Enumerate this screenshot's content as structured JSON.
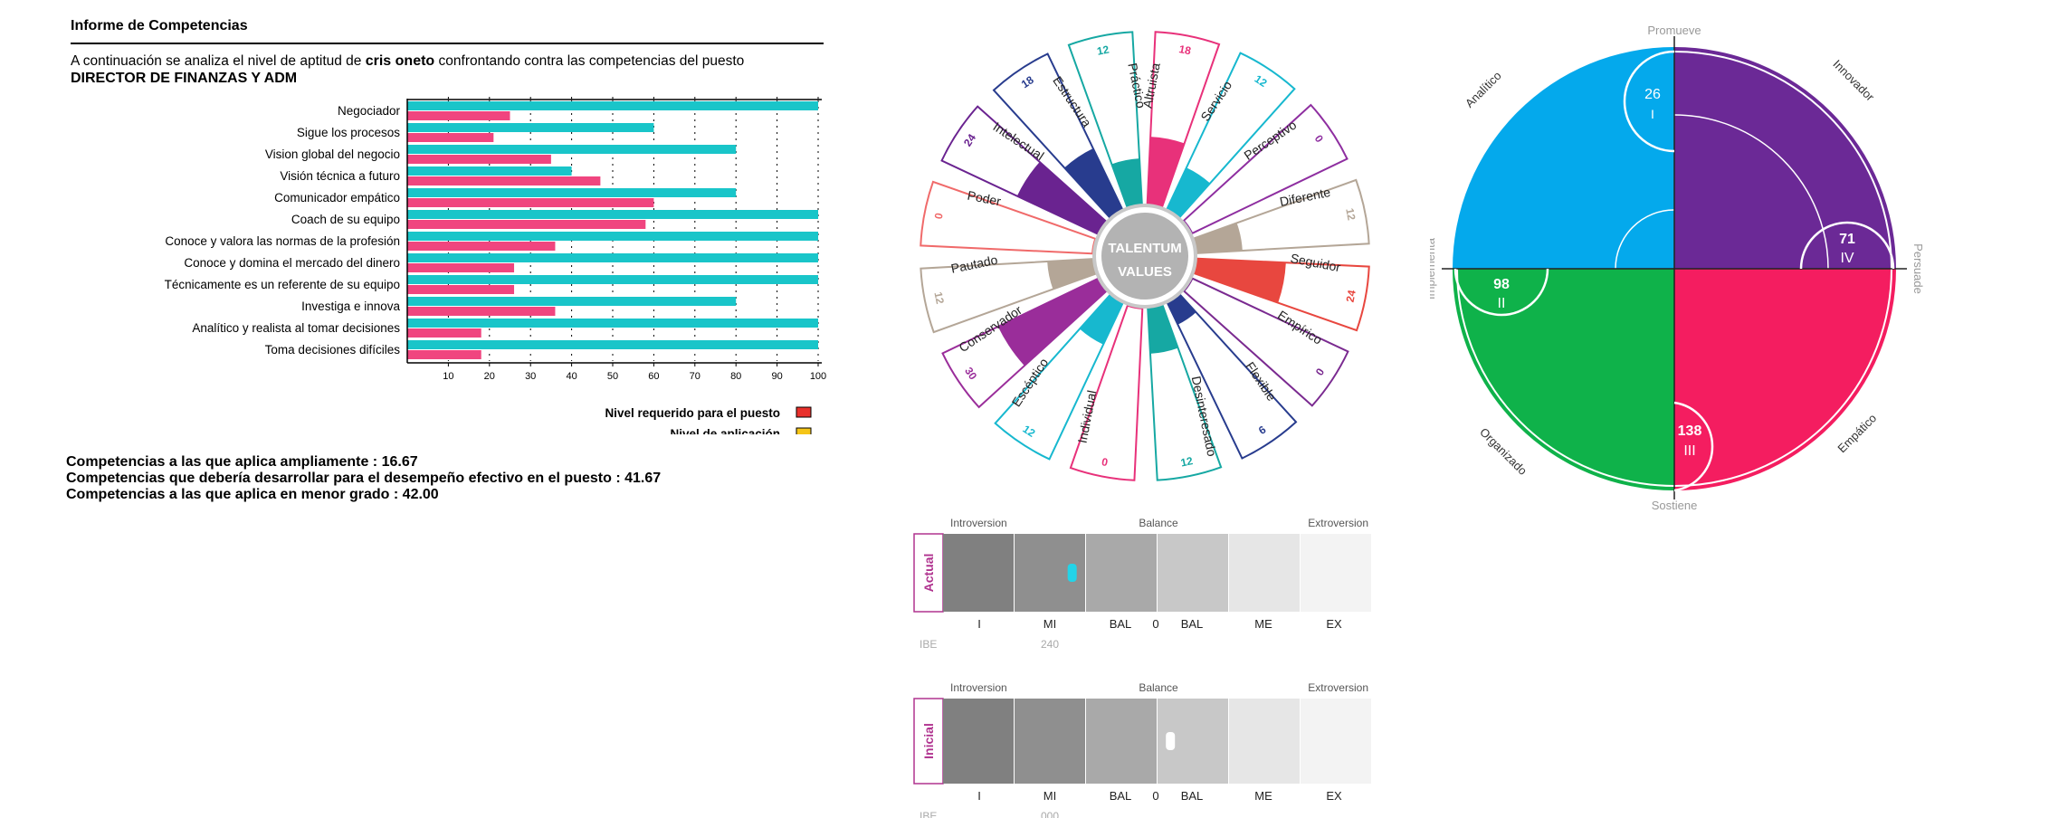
{
  "report": {
    "title": "Informe de Competencias",
    "intro_before": "A continuación se analiza el nivel de aptitud de",
    "candidate_name": "cris oneto",
    "intro_after": "confrontando contra las competencias del puesto",
    "position": "DIRECTOR DE FINANZAS Y ADM",
    "summary": [
      "Competencias a las que aplica ampliamente : 16.67",
      "Competencias que debería desarrollar para el desempeño efectivo en el puesto : 41.67",
      "Competencias a las que aplica en menor grado : 42.00"
    ]
  },
  "chart_data": [
    {
      "type": "bar",
      "orientation": "horizontal",
      "categories": [
        "Negociador",
        "Sigue los procesos",
        "Vision global del negocio",
        "Visión técnica a futuro",
        "Comunicador empático",
        "Coach de su equipo",
        "Conoce y valora las normas de la profesión",
        "Conoce y domina el mercado del dinero",
        "Técnicamente es un referente de su equipo",
        "Investiga e innova",
        "Analítico y realista al tomar decisiones",
        "Toma decisiones difíciles"
      ],
      "series": [
        {
          "name": "Nivel requerido para el puesto",
          "color": "#19c5c9",
          "values": [
            100,
            60,
            80,
            40,
            80,
            100,
            100,
            100,
            100,
            80,
            100,
            100
          ]
        },
        {
          "name": "Nivel de aplicación",
          "color": "#f0457f",
          "values": [
            25,
            21,
            35,
            47,
            60,
            58,
            36,
            26,
            26,
            36,
            18,
            18
          ]
        }
      ],
      "legend_swatches": [
        "#e8302b",
        "#f5c518"
      ],
      "xticks": [
        10,
        20,
        30,
        40,
        50,
        60,
        70,
        80,
        90,
        100
      ],
      "xlim": [
        0,
        100
      ]
    },
    {
      "type": "radial-bar",
      "center_label": [
        "TALENTUM",
        "VALUES"
      ],
      "segments": [
        {
          "label": "Altruista",
          "value": 18,
          "color": "#e8317a"
        },
        {
          "label": "Servicio",
          "value": 12,
          "color": "#17b8cf"
        },
        {
          "label": "Perceptivo",
          "value": 0,
          "color": "#8e2ea0"
        },
        {
          "label": "Diferente",
          "value": 12,
          "color": "#b4a697"
        },
        {
          "label": "Seguidor",
          "value": 24,
          "color": "#e8473f"
        },
        {
          "label": "Empírico",
          "value": 0,
          "color": "#7a2a90"
        },
        {
          "label": "Flexible",
          "value": 6,
          "color": "#283c8e"
        },
        {
          "label": "Desinteresado",
          "value": 12,
          "color": "#16a8a3"
        },
        {
          "label": "Individual",
          "value": 0,
          "color": "#e8317a"
        },
        {
          "label": "Escéptico",
          "value": 12,
          "color": "#17b8cf"
        },
        {
          "label": "Conservador",
          "value": 30,
          "color": "#9a2d9a"
        },
        {
          "label": "Pautado",
          "value": 12,
          "color": "#b4a697"
        },
        {
          "label": "Poder",
          "value": 0,
          "color": "#f06a6a"
        },
        {
          "label": "Intelectual",
          "value": 24,
          "color": "#6a2390"
        },
        {
          "label": "Estructura",
          "value": 18,
          "color": "#283c8e"
        },
        {
          "label": "Práctico",
          "value": 12,
          "color": "#16a8a3"
        }
      ],
      "max_value": 30
    },
    {
      "type": "pie",
      "axis_labels": {
        "top": "Promueve",
        "bottom": "Sostiene",
        "left": "Implementa",
        "right": "Persuade"
      },
      "quadrants": [
        {
          "label": "Analítico",
          "value": 26,
          "roman": "I",
          "color": "#04a9ec"
        },
        {
          "label": "Innovador",
          "value": 71,
          "roman": "IV",
          "color": "#6b2996"
        },
        {
          "label": "Organizado",
          "value": 98,
          "roman": "II",
          "color": "#0fb24a"
        },
        {
          "label": "Empático",
          "value": 138,
          "roman": "III",
          "color": "#f41d60"
        }
      ]
    },
    {
      "type": "gauge",
      "name": "Actual",
      "top_labels": [
        "Introversion",
        "Balance",
        "Extroversion"
      ],
      "bottom_labels": [
        "I",
        "MI",
        "BAL",
        "0",
        "BAL",
        "ME",
        "EX"
      ],
      "ibe_label": "IBE",
      "ibe_value": "240",
      "marker_position": 0.301,
      "marker_color": "#22d4e8"
    },
    {
      "type": "gauge",
      "name": "Inicial",
      "top_labels": [
        "Introversion",
        "Balance",
        "Extroversion"
      ],
      "bottom_labels": [
        "I",
        "MI",
        "BAL",
        "0",
        "BAL",
        "ME",
        "EX"
      ],
      "ibe_label": "IBE",
      "ibe_value": "000",
      "marker_position": 0.53,
      "marker_color": "#ffffff"
    }
  ],
  "colors": {
    "gauge_bands": [
      "#808080",
      "#8f8f8f",
      "#a9a9a9",
      "#c8c8c8",
      "#e6e6e6",
      "#f3f3f3"
    ],
    "gauge_border": "#b0338f"
  }
}
